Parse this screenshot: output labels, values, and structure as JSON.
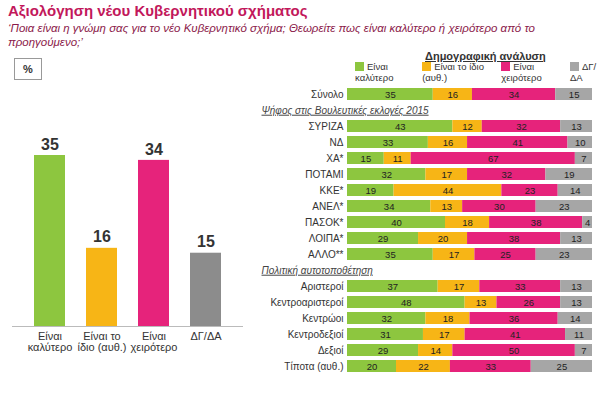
{
  "chart_data": [
    {
      "type": "bar",
      "title": "Αξιολόγηση νέου Κυβερνητικού σχήματος",
      "subtitle": "‘Ποια είναι η γνώμη σας για το νέο Κυβερνητικό σχήμα; Θεωρείτε πως είναι καλύτερο ή χειρότερο από το προηγούμενο;’",
      "ylabel": "%",
      "categories": [
        "Είναι καλύτερο",
        "Είναι το ίδιο (αυθ.)",
        "Είναι χειρότερο",
        "ΔΓ/ΔΑ"
      ],
      "values": [
        35,
        16,
        34,
        15
      ],
      "colors": [
        "#8dc63f",
        "#f7b516",
        "#e6237b",
        "#8c8c8c"
      ],
      "data_labels": true,
      "tick_labels": "x"
    },
    {
      "type": "bar",
      "title": "Δημογραφική ανάλυση",
      "orientation": "horizontal",
      "stacked": true,
      "data_labels": true,
      "tick_labels": "y",
      "legend": "top",
      "xlim": [
        0,
        100
      ],
      "categories": [
        "Σύνολο",
        "ΣΥΡΙΖΑ",
        "ΝΔ",
        "ΧΑ*",
        "ΠΟΤΑΜΙ",
        "ΚΚΕ*",
        "ΑΝΕΛ*",
        "ΠΑΣΟΚ*",
        "ΛΟΙΠΑ*",
        "ΑΛΛΟ**",
        "Αριστεροί",
        "Κεντροαριστεροί",
        "Κεντρώοι",
        "Κεντροδεξιοί",
        "Δεξιοί",
        "Τίποτα (αυθ.)"
      ],
      "annotations": [
        {
          "text": "Ψήφος στις Βουλευτικές εκλογές 2015",
          "category": "ΣΥΡΙΖΑ"
        },
        {
          "text": "Πολιτική αυτοτοποθέτηση",
          "category": "Αριστεροί"
        }
      ],
      "series": [
        {
          "name": "Είναι καλύτερο",
          "color": "#8dc63f",
          "values": [
            35,
            43,
            33,
            15,
            32,
            19,
            34,
            40,
            29,
            35,
            37,
            48,
            32,
            31,
            29,
            20
          ]
        },
        {
          "name": "Είναι το ίδιο (αυθ.)",
          "color": "#f7b516",
          "values": [
            16,
            12,
            16,
            11,
            17,
            44,
            13,
            18,
            20,
            17,
            17,
            13,
            18,
            17,
            14,
            22
          ]
        },
        {
          "name": "Είναι χειρότερο",
          "color": "#e6237b",
          "values": [
            34,
            32,
            41,
            67,
            32,
            23,
            30,
            38,
            38,
            25,
            33,
            26,
            36,
            41,
            50,
            33
          ]
        },
        {
          "name": "ΔΓ/ΔΑ",
          "color": "#a6a6a6",
          "values": [
            15,
            13,
            10,
            7,
            19,
            14,
            23,
            4,
            13,
            23,
            13,
            13,
            14,
            11,
            7,
            25
          ]
        }
      ]
    }
  ]
}
